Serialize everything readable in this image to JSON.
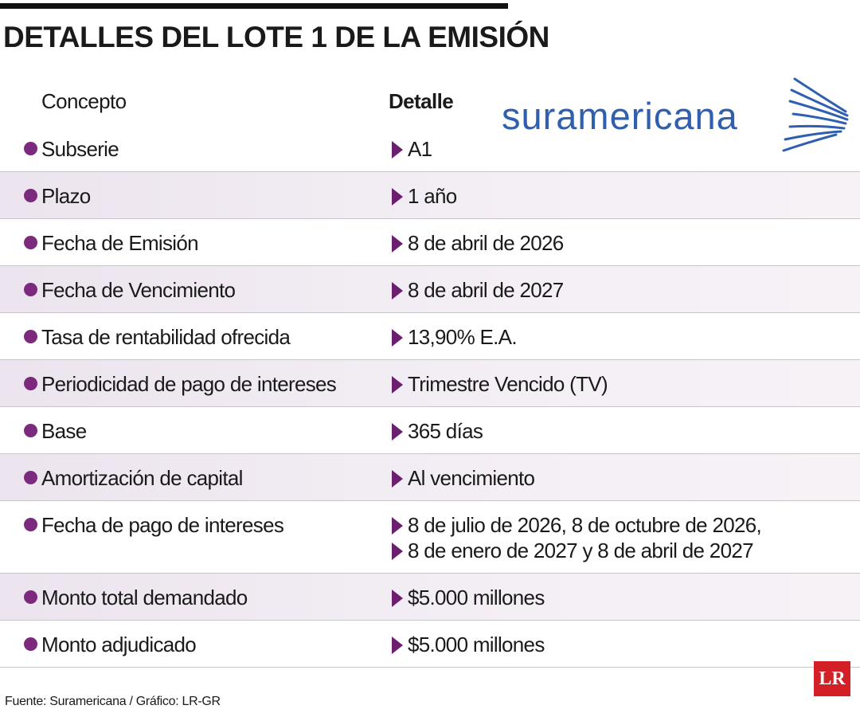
{
  "header": {
    "title": "DETALLES DEL LOTE 1 DE LA EMISIÓN",
    "logo": "suramericana"
  },
  "table": {
    "headers": [
      "Concepto",
      "Detalle"
    ],
    "rows": [
      {
        "concepto": "Subserie",
        "detalle": [
          "A1"
        ]
      },
      {
        "concepto": "Plazo",
        "detalle": [
          "1 año"
        ]
      },
      {
        "concepto": "Fecha de Emisión",
        "detalle": [
          "8 de abril de 2026"
        ]
      },
      {
        "concepto": "Fecha de Vencimiento",
        "detalle": [
          "8 de abril de 2027"
        ]
      },
      {
        "concepto": "Tasa de rentabilidad ofrecida",
        "detalle": [
          "13,90% E.A."
        ]
      },
      {
        "concepto": "Periodicidad de pago de intereses",
        "detalle": [
          "Trimestre Vencido (TV)"
        ]
      },
      {
        "concepto": "Base",
        "detalle": [
          "365 días"
        ]
      },
      {
        "concepto": "Amortización de capital",
        "detalle": [
          "Al vencimiento"
        ]
      },
      {
        "concepto": "Fecha de pago de intereses",
        "detalle": [
          "8 de julio de 2026, 8 de octubre de 2026,",
          "8 de enero de 2027 y 8 de abril de 2027"
        ]
      },
      {
        "concepto": "Monto total demandado",
        "detalle": [
          "$5.000 millones"
        ]
      },
      {
        "concepto": "Monto adjudicado",
        "detalle": [
          "$5.000 millones"
        ]
      }
    ]
  },
  "footer": {
    "source": "Fuente: Suramericana / Gráfico: LR-GR",
    "brand": "LR"
  }
}
